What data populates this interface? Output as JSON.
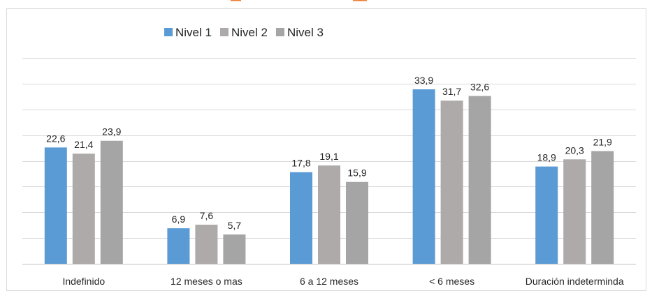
{
  "chart_data": {
    "type": "bar",
    "title": "",
    "xlabel": "",
    "ylabel": "",
    "ylim": [
      0,
      40
    ],
    "grid": true,
    "legend": "top-left",
    "categories": [
      "Indefinido",
      "12 meses o mas",
      "6 a 12 meses",
      "< 6 meses",
      "Duración indeterminda"
    ],
    "series": [
      {
        "name": "Nivel 1",
        "color": "#5b9bd5",
        "values": [
          22.6,
          6.9,
          17.8,
          33.9,
          18.9
        ],
        "labels": [
          "22,6",
          "6,9",
          "17,8",
          "33,9",
          "18,9"
        ]
      },
      {
        "name": "Nivel 2",
        "color": "#aeaaaa",
        "values": [
          21.4,
          7.6,
          19.1,
          31.7,
          20.3
        ],
        "labels": [
          "21,4",
          "7,6",
          "19,1",
          "31,7",
          "20,3"
        ]
      },
      {
        "name": "Nivel 3",
        "color": "#a5a5a5",
        "values": [
          23.9,
          5.7,
          15.9,
          32.6,
          21.9
        ],
        "labels": [
          "23,9",
          "5,7",
          "15,9",
          "32,6",
          "21,9"
        ]
      }
    ]
  }
}
